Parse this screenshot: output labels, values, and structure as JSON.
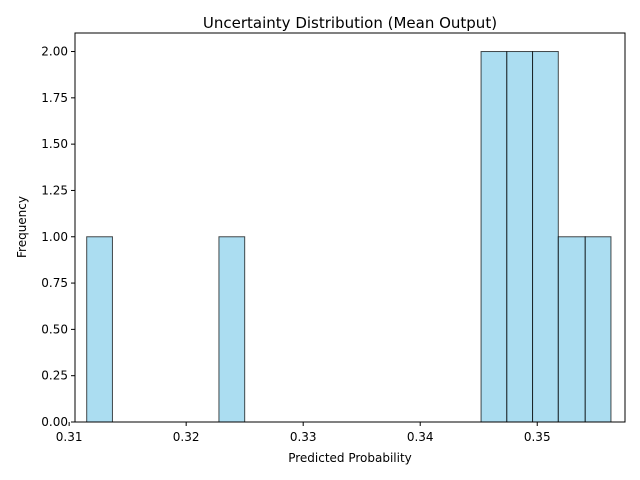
{
  "chart_data": {
    "type": "histogram",
    "title": "Uncertainty Distribution (Mean Output)",
    "xlabel": "Predicted Probability",
    "ylabel": "Frequency",
    "xlim": [
      0.3105,
      0.3575
    ],
    "ylim": [
      0,
      2.1
    ],
    "x_ticks": [
      0.31,
      0.32,
      0.33,
      0.34,
      0.35
    ],
    "x_tick_labels": [
      "0.31",
      "0.32",
      "0.33",
      "0.34",
      "0.35"
    ],
    "y_ticks": [
      0,
      0.25,
      0.5,
      0.75,
      1.0,
      1.25,
      1.5,
      1.75,
      2.0
    ],
    "y_tick_labels": [
      "0.00",
      "0.25",
      "0.50",
      "0.75",
      "1.00",
      "1.25",
      "1.50",
      "1.75",
      "2.00"
    ],
    "bins": [
      {
        "x0": 0.3115,
        "x1": 0.3137,
        "count": 1
      },
      {
        "x0": 0.3228,
        "x1": 0.325,
        "count": 1
      },
      {
        "x0": 0.3452,
        "x1": 0.3474,
        "count": 2
      },
      {
        "x0": 0.3474,
        "x1": 0.3496,
        "count": 2
      },
      {
        "x0": 0.3496,
        "x1": 0.3518,
        "count": 2
      },
      {
        "x0": 0.3518,
        "x1": 0.3541,
        "count": 1
      },
      {
        "x0": 0.3541,
        "x1": 0.3563,
        "count": 1
      }
    ],
    "bar_color": "#87ceeb",
    "bar_alpha": 0.7,
    "edge_color": "#000000",
    "grid": false,
    "legend": "none"
  }
}
